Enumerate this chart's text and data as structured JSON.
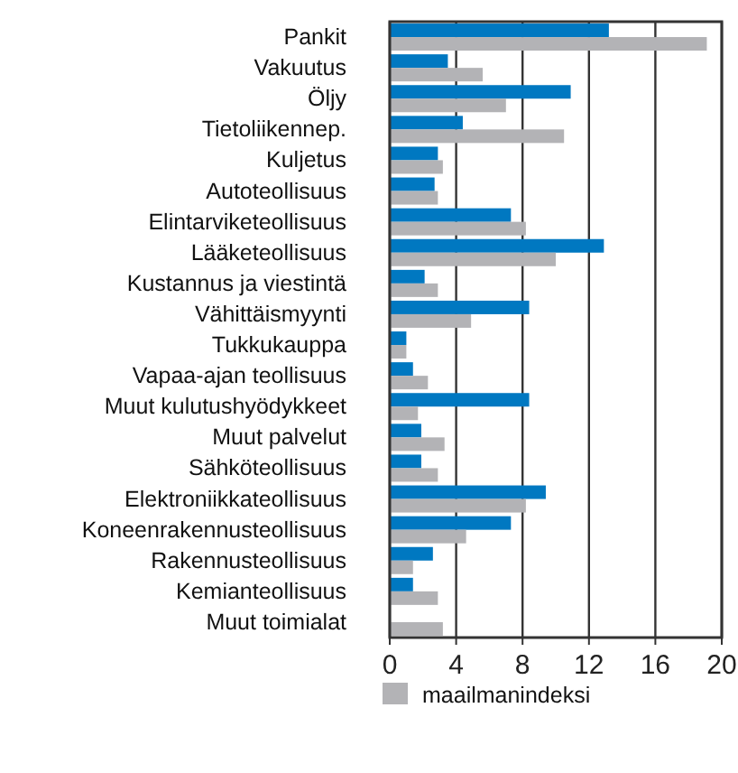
{
  "chart_data": {
    "type": "bar",
    "orientation": "horizontal",
    "categories": [
      "Pankit",
      "Vakuutus",
      "Öljy",
      "Tietoliikennep.",
      "Kuljetus",
      "Autoteollisuus",
      "Elintarviketeollisuus",
      "Lääketeollisuus",
      "Kustannus ja viestintä",
      "Vähittäismyynti",
      "Tukkukauppa",
      "Vapaa-ajan teollisuus",
      "Muut kulutushyödykkeet",
      "Muut palvelut",
      "Sähköteollisuus",
      "Elektroniikkateollisuus",
      "Koneenrakennusteollisuus",
      "Rakennusteollisuus",
      "Kemianteollisuus",
      "Muut toimialat"
    ],
    "series": [
      {
        "color": "#0078c1",
        "values": [
          13.2,
          3.5,
          10.9,
          4.4,
          2.9,
          2.7,
          7.3,
          12.9,
          2.1,
          8.4,
          1.0,
          1.4,
          8.4,
          1.9,
          1.9,
          9.4,
          7.3,
          2.6,
          1.4,
          null
        ]
      },
      {
        "name": "maailmanindeksi",
        "color": "#b3b3b6",
        "values": [
          19.1,
          5.6,
          7.0,
          10.5,
          3.2,
          2.9,
          8.2,
          10.0,
          2.9,
          4.9,
          1.0,
          2.3,
          1.7,
          3.3,
          2.9,
          8.2,
          4.6,
          1.4,
          2.9,
          3.2
        ]
      }
    ],
    "xlim": [
      0,
      20
    ],
    "xticks": [
      0,
      4,
      8,
      12,
      16,
      20
    ],
    "grid": "x",
    "legend": "bottom"
  }
}
